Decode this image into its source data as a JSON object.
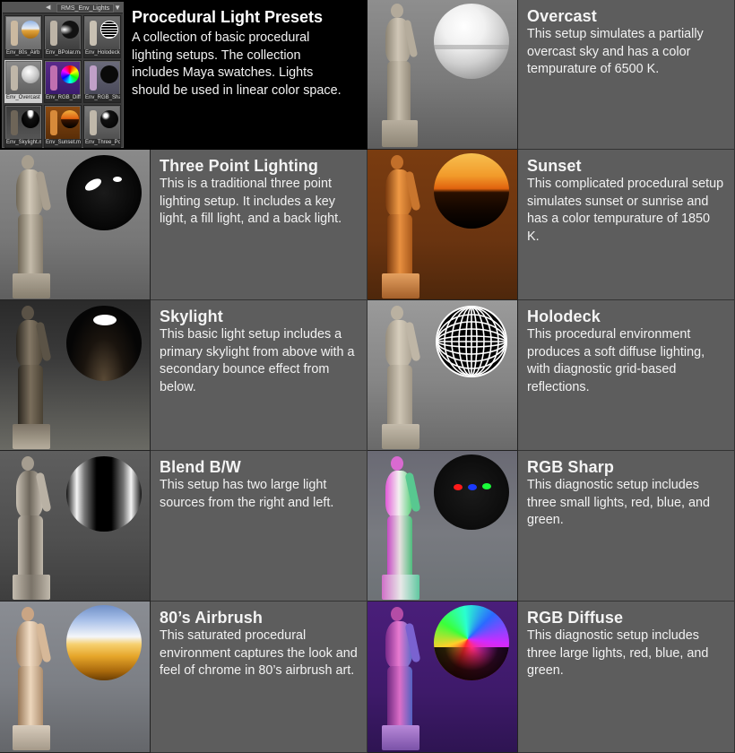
{
  "header": {
    "title": "Procedural Light Presets",
    "description": "A collection of basic procedural lighting setups. The collection includes Maya swatches. Lights should be used in linear color space."
  },
  "shelf": {
    "tab_label": "RMS_Env_Lights",
    "swatches": [
      {
        "label": "Env_80s_Airb"
      },
      {
        "label": "Env_BPolar.ma"
      },
      {
        "label": "Env_Holodeck"
      },
      {
        "label": "Env_Overcast"
      },
      {
        "label": "Env_RGB_Diff"
      },
      {
        "label": "Env_RGB_Shar"
      },
      {
        "label": "Env_Skylight.ma"
      },
      {
        "label": "Env_Sunset.ma"
      },
      {
        "label": "Env_Three_Po"
      }
    ]
  },
  "presets": [
    {
      "title": "Overcast",
      "description": "This setup simulates a partially overcast sky and has a color tempurature of 6500 K."
    },
    {
      "title": "Three Point Lighting",
      "description": "This is a traditional three point lighting setup. It includes a key light, a fill light, and a back light."
    },
    {
      "title": "Sunset",
      "description": "This complicated procedural setup simulates sunset or sunrise and has a color tempurature of 1850 K."
    },
    {
      "title": "Skylight",
      "description": "This basic light setup includes a primary skylight from above with a secondary bounce effect from below."
    },
    {
      "title": "Holodeck",
      "description": "This procedural environment produces a soft diffuse lighting, with diagnostic grid-based reflections."
    },
    {
      "title": "Blend B/W",
      "description": "This setup has two large light sources from the right and left."
    },
    {
      "title": "RGB Sharp",
      "description": "This diagnostic setup includes three small lights, red, blue, and green."
    },
    {
      "title": "80’s Airbrush",
      "description": "This saturated procedural environment captures the look and feel of chrome in 80’s airbrush art."
    },
    {
      "title": "RGB Diffuse",
      "description": "This diagnostic setup includes three large lights, red, blue, and green."
    }
  ]
}
